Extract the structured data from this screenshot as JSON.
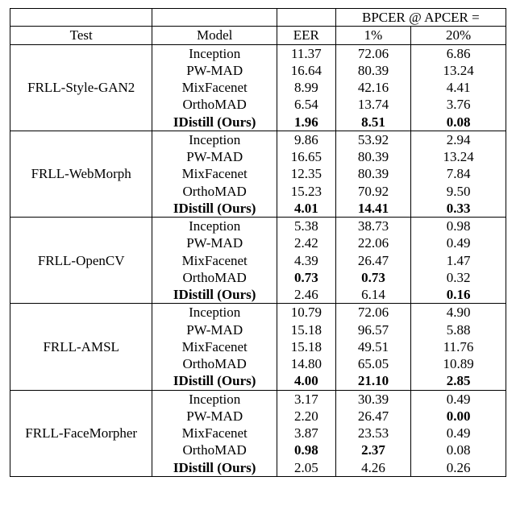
{
  "header": {
    "test_label": "Test",
    "model_label": "Model",
    "eer_label": "EER",
    "bpcer_label": "BPCER @ APCER =",
    "b1_label": "1%",
    "b20_label": "20%"
  },
  "groups": [
    {
      "test": "FRLL-Style-GAN2",
      "rows": [
        {
          "model": "Inception",
          "eer": "11.37",
          "b1": "72.06",
          "b20": "6.86",
          "bold": {
            "model": false,
            "eer": false,
            "b1": false,
            "b20": false
          }
        },
        {
          "model": "PW-MAD",
          "eer": "16.64",
          "b1": "80.39",
          "b20": "13.24",
          "bold": {
            "model": false,
            "eer": false,
            "b1": false,
            "b20": false
          }
        },
        {
          "model": "MixFacenet",
          "eer": "8.99",
          "b1": "42.16",
          "b20": "4.41",
          "bold": {
            "model": false,
            "eer": false,
            "b1": false,
            "b20": false
          }
        },
        {
          "model": "OrthoMAD",
          "eer": "6.54",
          "b1": "13.74",
          "b20": "3.76",
          "bold": {
            "model": false,
            "eer": false,
            "b1": false,
            "b20": false
          }
        },
        {
          "model": "IDistill (Ours)",
          "eer": "1.96",
          "b1": "8.51",
          "b20": "0.08",
          "bold": {
            "model": true,
            "eer": true,
            "b1": true,
            "b20": true
          }
        }
      ]
    },
    {
      "test": "FRLL-WebMorph",
      "rows": [
        {
          "model": "Inception",
          "eer": "9.86",
          "b1": "53.92",
          "b20": "2.94",
          "bold": {
            "model": false,
            "eer": false,
            "b1": false,
            "b20": false
          }
        },
        {
          "model": "PW-MAD",
          "eer": "16.65",
          "b1": "80.39",
          "b20": "13.24",
          "bold": {
            "model": false,
            "eer": false,
            "b1": false,
            "b20": false
          }
        },
        {
          "model": "MixFacenet",
          "eer": "12.35",
          "b1": "80.39",
          "b20": "7.84",
          "bold": {
            "model": false,
            "eer": false,
            "b1": false,
            "b20": false
          }
        },
        {
          "model": "OrthoMAD",
          "eer": "15.23",
          "b1": "70.92",
          "b20": "9.50",
          "bold": {
            "model": false,
            "eer": false,
            "b1": false,
            "b20": false
          }
        },
        {
          "model": "IDistill (Ours)",
          "eer": "4.01",
          "b1": "14.41",
          "b20": "0.33",
          "bold": {
            "model": true,
            "eer": true,
            "b1": true,
            "b20": true
          }
        }
      ]
    },
    {
      "test": "FRLL-OpenCV",
      "rows": [
        {
          "model": "Inception",
          "eer": "5.38",
          "b1": "38.73",
          "b20": "0.98",
          "bold": {
            "model": false,
            "eer": false,
            "b1": false,
            "b20": false
          }
        },
        {
          "model": "PW-MAD",
          "eer": "2.42",
          "b1": "22.06",
          "b20": "0.49",
          "bold": {
            "model": false,
            "eer": false,
            "b1": false,
            "b20": false
          }
        },
        {
          "model": "MixFacenet",
          "eer": "4.39",
          "b1": "26.47",
          "b20": "1.47",
          "bold": {
            "model": false,
            "eer": false,
            "b1": false,
            "b20": false
          }
        },
        {
          "model": "OrthoMAD",
          "eer": "0.73",
          "b1": "0.73",
          "b20": "0.32",
          "bold": {
            "model": false,
            "eer": true,
            "b1": true,
            "b20": false
          }
        },
        {
          "model": "IDistill (Ours)",
          "eer": "2.46",
          "b1": "6.14",
          "b20": "0.16",
          "bold": {
            "model": true,
            "eer": false,
            "b1": false,
            "b20": true
          }
        }
      ]
    },
    {
      "test": "FRLL-AMSL",
      "rows": [
        {
          "model": "Inception",
          "eer": "10.79",
          "b1": "72.06",
          "b20": "4.90",
          "bold": {
            "model": false,
            "eer": false,
            "b1": false,
            "b20": false
          }
        },
        {
          "model": "PW-MAD",
          "eer": "15.18",
          "b1": "96.57",
          "b20": "5.88",
          "bold": {
            "model": false,
            "eer": false,
            "b1": false,
            "b20": false
          }
        },
        {
          "model": "MixFacenet",
          "eer": "15.18",
          "b1": "49.51",
          "b20": "11.76",
          "bold": {
            "model": false,
            "eer": false,
            "b1": false,
            "b20": false
          }
        },
        {
          "model": "OrthoMAD",
          "eer": "14.80",
          "b1": "65.05",
          "b20": "10.89",
          "bold": {
            "model": false,
            "eer": false,
            "b1": false,
            "b20": false
          }
        },
        {
          "model": "IDistill (Ours)",
          "eer": "4.00",
          "b1": "21.10",
          "b20": "2.85",
          "bold": {
            "model": true,
            "eer": true,
            "b1": true,
            "b20": true
          }
        }
      ]
    },
    {
      "test": "FRLL-FaceMorpher",
      "rows": [
        {
          "model": "Inception",
          "eer": "3.17",
          "b1": "30.39",
          "b20": "0.49",
          "bold": {
            "model": false,
            "eer": false,
            "b1": false,
            "b20": false
          }
        },
        {
          "model": "PW-MAD",
          "eer": "2.20",
          "b1": "26.47",
          "b20": "0.00",
          "bold": {
            "model": false,
            "eer": false,
            "b1": false,
            "b20": true
          }
        },
        {
          "model": "MixFacenet",
          "eer": "3.87",
          "b1": "23.53",
          "b20": "0.49",
          "bold": {
            "model": false,
            "eer": false,
            "b1": false,
            "b20": false
          }
        },
        {
          "model": "OrthoMAD",
          "eer": "0.98",
          "b1": "2.37",
          "b20": "0.08",
          "bold": {
            "model": false,
            "eer": true,
            "b1": true,
            "b20": false
          }
        },
        {
          "model": "IDistill (Ours)",
          "eer": "2.05",
          "b1": "4.26",
          "b20": "0.26",
          "bold": {
            "model": true,
            "eer": false,
            "b1": false,
            "b20": false
          }
        }
      ]
    }
  ]
}
